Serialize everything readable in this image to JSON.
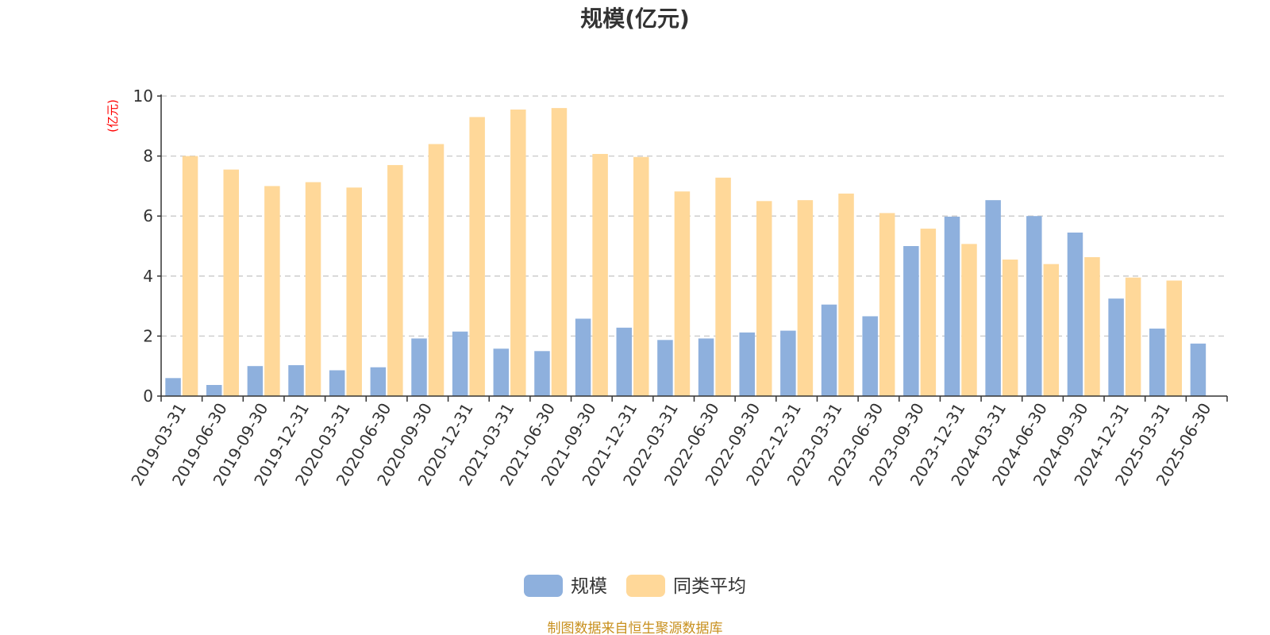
{
  "colors": {
    "series_scale": "#8eb0dd",
    "series_avg": "#ffd899",
    "title": "#333333",
    "unit": "#ff0000",
    "source": "#c8901e",
    "grid": "#c8c8c8",
    "axis": "#333333"
  },
  "source_note": "制图数据来自恒生聚源数据库",
  "chart_data": {
    "type": "bar",
    "title": "规模(亿元)",
    "ylabel": "(亿元)",
    "xlabel": "",
    "ylim": [
      0,
      10
    ],
    "yticks": [
      0,
      2,
      4,
      6,
      8,
      10
    ],
    "grid": true,
    "legend_position": "bottom-center",
    "categories": [
      "2019-03-31",
      "2019-06-30",
      "2019-09-30",
      "2019-12-31",
      "2020-03-31",
      "2020-06-30",
      "2020-09-30",
      "2020-12-31",
      "2021-03-31",
      "2021-06-30",
      "2021-09-30",
      "2021-12-31",
      "2022-03-31",
      "2022-06-30",
      "2022-09-30",
      "2022-12-31",
      "2023-03-31",
      "2023-06-30",
      "2023-09-30",
      "2023-12-31",
      "2024-03-31",
      "2024-06-30",
      "2024-09-30",
      "2024-12-31",
      "2025-03-31",
      "2025-06-30"
    ],
    "series": [
      {
        "name": "规模",
        "values": [
          0.6,
          0.37,
          1.0,
          1.03,
          0.86,
          0.96,
          1.92,
          2.15,
          1.58,
          1.5,
          2.58,
          2.28,
          1.87,
          1.92,
          2.12,
          2.18,
          3.05,
          2.66,
          5.0,
          5.98,
          6.53,
          6.0,
          5.45,
          3.25,
          2.25,
          1.75
        ]
      },
      {
        "name": "同类平均",
        "values": [
          8.0,
          7.55,
          7.0,
          7.13,
          6.95,
          7.7,
          8.4,
          9.3,
          9.55,
          9.6,
          8.07,
          7.97,
          6.82,
          7.28,
          6.5,
          6.53,
          6.75,
          6.1,
          5.58,
          5.07,
          4.55,
          4.4,
          4.63,
          3.95,
          3.85,
          null
        ]
      }
    ]
  }
}
